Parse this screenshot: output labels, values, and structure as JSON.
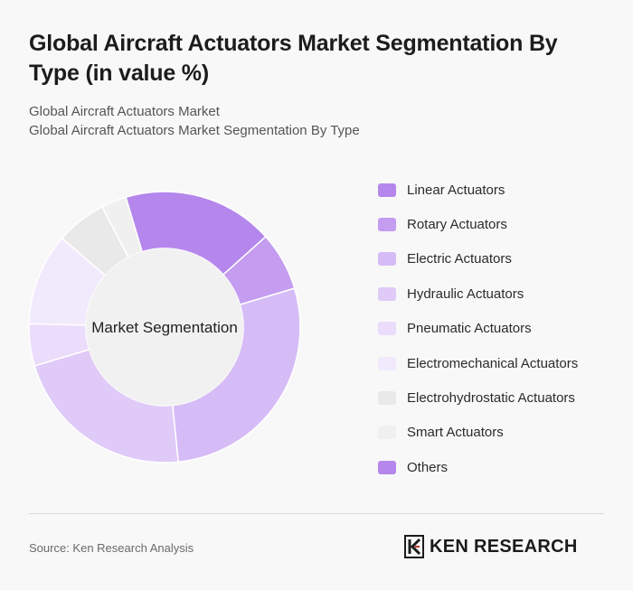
{
  "header": {
    "title": "Global Aircraft Actuators Market Segmentation By Type (in value %)",
    "subtitle_line1": "Global Aircraft Actuators Market",
    "subtitle_line2": "Global Aircraft Actuators Market Segmentation By Type"
  },
  "chart_data": {
    "type": "pie",
    "donut": true,
    "center_label": "Market Segmentation",
    "series": [
      {
        "label": "Linear Actuators",
        "value": 18,
        "color": "#b587ec"
      },
      {
        "label": "Rotary Actuators",
        "value": 7,
        "color": "#c49cf0"
      },
      {
        "label": "Electric Actuators",
        "value": 28,
        "color": "#d6bcf6"
      },
      {
        "label": "Hydraulic Actuators",
        "value": 22,
        "color": "#dfcaf8"
      },
      {
        "label": "Pneumatic Actuators",
        "value": 5,
        "color": "#eadcfa"
      },
      {
        "label": "Electromechanical Actuators",
        "value": 11,
        "color": "#f1eafc"
      },
      {
        "label": "Electrohydrostatic Actuators",
        "value": 6,
        "color": "#e9e9e9"
      },
      {
        "label": "Smart Actuators",
        "value": 3,
        "color": "#f0f0f0"
      },
      {
        "label": "Others",
        "value": 0,
        "color": "#b587ec"
      }
    ],
    "legend_position": "right"
  },
  "footer": {
    "source": "Source: Ken Research Analysis",
    "logo_text": "KEN RESEARCH"
  }
}
